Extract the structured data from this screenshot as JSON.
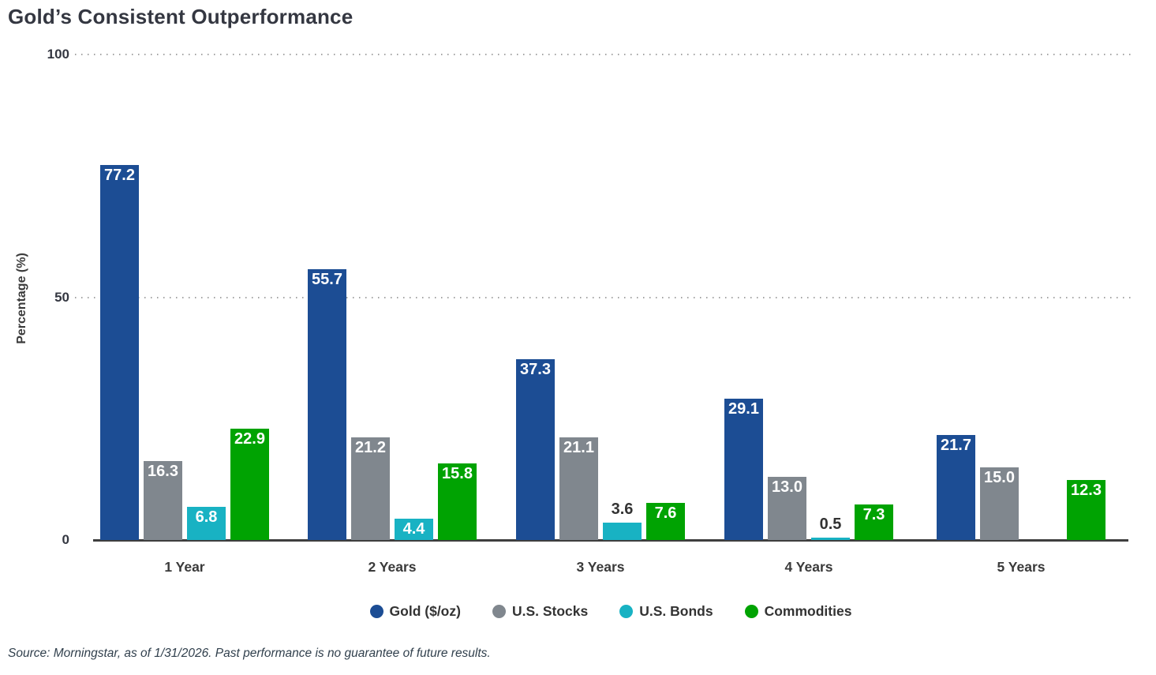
{
  "title": "Gold’s Consistent Outperformance",
  "chart_data": {
    "type": "bar",
    "title": "Gold’s Consistent Outperformance",
    "categories": [
      "1 Year",
      "2 Years",
      "3 Years",
      "4 Years",
      "5 Years"
    ],
    "series": [
      {
        "name": "Gold ($/oz)",
        "color": "#1c4d94",
        "values": [
          77.2,
          55.7,
          37.3,
          29.1,
          21.7
        ]
      },
      {
        "name": "U.S. Stocks",
        "color": "#80878e",
        "values": [
          16.3,
          21.2,
          21.1,
          13.0,
          15.0
        ]
      },
      {
        "name": "U.S. Bonds",
        "color": "#18b2c3",
        "values": [
          6.8,
          4.4,
          3.6,
          0.5,
          null
        ]
      },
      {
        "name": "Commodities",
        "color": "#00a302",
        "values": [
          22.9,
          15.8,
          7.6,
          7.3,
          12.3
        ]
      }
    ],
    "ylabel": "Percentage (%)",
    "yticks": [
      0,
      50,
      100
    ],
    "ylim": [
      0,
      100
    ],
    "grid": "horizontal dotted lines at 50 and 100, solid dark baseline at 0",
    "legend_position": "bottom-center",
    "value_label_format": "one decimal place; white inside tall bars, dark above short bars"
  },
  "footer": {
    "source": "Source: Morningstar, as of 1/31/2026. Past performance is no guarantee of future results."
  },
  "colors": {
    "axis_line": "#3e3e3e",
    "grid_dots": "#a3a3a3",
    "title_text": "#343741",
    "value_label_inside": "#ffffff",
    "value_label_outside": "#333333"
  }
}
